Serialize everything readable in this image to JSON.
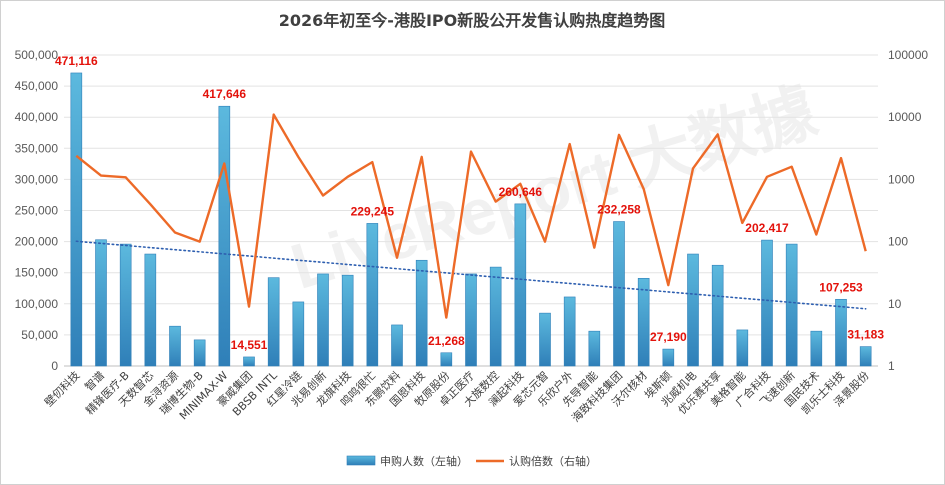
{
  "chart_data": {
    "type": "bar+line",
    "title": "2026年初至今-港股IPO新股公开发售认购热度趋势图",
    "watermark": "LiveReport 大数據",
    "categories": [
      "壁仞科技",
      "智谱",
      "精锋医疗-B",
      "天数智芯",
      "金浔资源",
      "瑞博生物-B",
      "MINIMAX-W",
      "豪威集团",
      "BBSB INTL",
      "红星冷链",
      "兆易创新",
      "龙旗科技",
      "鸣鸣很忙",
      "东鹏饮料",
      "国恩科技",
      "牧原股份",
      "卓正医疗",
      "大族数控",
      "澜起科技",
      "爱芯元智",
      "乐欣户外",
      "先导智能",
      "海致科技集团",
      "沃尔核材",
      "埃斯顿",
      "兆威机电",
      "优乐赛共享",
      "美格智能",
      "广合科技",
      "飞速创新",
      "国民技术",
      "凯乐士科技",
      "泽景股份"
    ],
    "series": [
      {
        "name": "申购人数（左轴）",
        "type": "bar",
        "axis": "left",
        "color": "#4aa8d0",
        "values": [
          471116,
          203000,
          196000,
          180000,
          64000,
          42000,
          417646,
          14551,
          142000,
          103000,
          148000,
          146000,
          229245,
          66000,
          170000,
          21268,
          148000,
          159000,
          260646,
          85000,
          111000,
          56000,
          232258,
          141000,
          27190,
          180000,
          162000,
          58000,
          202417,
          196000,
          56000,
          107253,
          31183
        ]
      },
      {
        "name": "认购倍数（右轴）",
        "type": "line",
        "axis": "right",
        "scale": "log",
        "color": "#ed6a28",
        "values": [
          2400,
          1150,
          1080,
          400,
          140,
          100,
          1800,
          9,
          11000,
          2300,
          550,
          1100,
          1900,
          55,
          2300,
          6,
          2800,
          440,
          850,
          100,
          3700,
          80,
          5200,
          700,
          20,
          1500,
          5300,
          200,
          1100,
          1600,
          130,
          2200,
          70
        ]
      }
    ],
    "data_labels": [
      {
        "index": 0,
        "text": "471,116"
      },
      {
        "index": 6,
        "text": "417,646"
      },
      {
        "index": 7,
        "text": "14,551"
      },
      {
        "index": 12,
        "text": "229,245"
      },
      {
        "index": 15,
        "text": "21,268"
      },
      {
        "index": 18,
        "text": "260,646"
      },
      {
        "index": 22,
        "text": "232,258"
      },
      {
        "index": 24,
        "text": "27,190"
      },
      {
        "index": 28,
        "text": "202,417"
      },
      {
        "index": 31,
        "text": "107,253"
      },
      {
        "index": 32,
        "text": "31,183"
      }
    ],
    "trendline": {
      "series": "申购人数（左轴）",
      "type": "linear",
      "color": "#2e5fb0",
      "style": "dotted"
    },
    "left_axis": {
      "ylim": [
        0,
        500000
      ],
      "ticks": [
        0,
        50000,
        100000,
        150000,
        200000,
        250000,
        300000,
        350000,
        400000,
        450000,
        500000
      ],
      "tick_labels": [
        "0",
        "50,000",
        "100,000",
        "150,000",
        "200,000",
        "250,000",
        "300,000",
        "350,000",
        "400,000",
        "450,000",
        "500,000"
      ]
    },
    "right_axis": {
      "scale": "log",
      "ylim": [
        1,
        100000
      ],
      "ticks": [
        1,
        10,
        100,
        1000,
        10000,
        100000
      ],
      "tick_labels": [
        "1",
        "10",
        "100",
        "1000",
        "10000",
        "100000"
      ]
    },
    "legend": {
      "placement": "bottom",
      "items": [
        "申购人数（左轴）",
        "认购倍数（右轴）"
      ]
    },
    "grid": true
  }
}
